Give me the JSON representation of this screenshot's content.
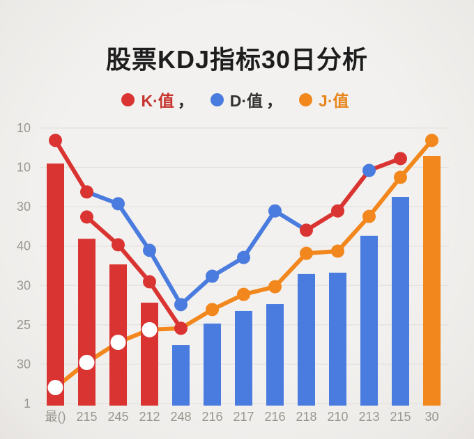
{
  "header": {
    "title": "股票KDJ指标30日分析"
  },
  "legend": [
    {
      "label": "K·值",
      "suffix": "，",
      "color": "#d93431",
      "text_color": "#c7332f"
    },
    {
      "label": "D·值",
      "suffix": "，",
      "color": "#4a7bde",
      "text_color": "#333333"
    },
    {
      "label": "J·值",
      "suffix": "",
      "color": "#f2871d",
      "text_color": "#e8861c"
    }
  ],
  "chart_data": {
    "type": "bar+line",
    "title": "股票KDJ指标30日分析",
    "legend_entries": [
      "K·值",
      "D·值",
      "J·值"
    ],
    "legend_position": "top",
    "grid": true,
    "categories": [
      "最()",
      "215",
      "245",
      "212",
      "248",
      "216",
      "217",
      "216",
      "218",
      "210",
      "213",
      "215",
      "30"
    ],
    "y_tick_labels": [
      "10",
      "10",
      "30",
      "40",
      "30",
      "25",
      "30",
      "1"
    ],
    "value_scale_note": "values are percent of plot height above the baseline (0=baseline, 100=top gridline), estimated from pixels; the printed y-axis labels are non-monotonic as shown",
    "colors": {
      "red": "#d93431",
      "blue": "#4a7bde",
      "orange": "#f2871d",
      "white": "#ffffff"
    },
    "axis_text_color": "#98978f",
    "gridline_color": "#e3e1dd",
    "bars": {
      "values": [
        87.1,
        59.8,
        50.5,
        36.6,
        21.2,
        29.0,
        33.6,
        36.1,
        47.0,
        47.5,
        60.9,
        75.0,
        89.9
      ],
      "colors": [
        "red",
        "red",
        "red",
        "red",
        "blue",
        "blue",
        "blue",
        "blue",
        "blue",
        "blue",
        "blue",
        "blue",
        "orange"
      ]
    },
    "lines": [
      {
        "name": "J值",
        "color": "orange",
        "points": [
          {
            "c": 0,
            "v": 5.8,
            "dot": "white"
          },
          {
            "c": 1,
            "v": 14.9,
            "dot": "white"
          },
          {
            "c": 2,
            "v": 22.2,
            "dot": "white"
          },
          {
            "c": 3,
            "v": 26.8,
            "dot": "white"
          },
          {
            "c": 4,
            "v": 27.3,
            "dot": "none"
          },
          {
            "c": 5,
            "v": 34.1,
            "dot": "orange"
          },
          {
            "c": 6,
            "v": 39.6,
            "dot": "orange"
          },
          {
            "c": 7,
            "v": 42.4,
            "dot": "orange"
          },
          {
            "c": 8,
            "v": 54.5,
            "dot": "orange"
          },
          {
            "c": 9,
            "v": 55.3,
            "dot": "orange"
          },
          {
            "c": 10,
            "v": 67.9,
            "dot": "orange"
          },
          {
            "c": 11,
            "v": 82.1,
            "dot": "orange"
          },
          {
            "c": 12,
            "v": 95.5,
            "dot": "orange"
          }
        ]
      },
      {
        "name": "D值",
        "color": "blue",
        "points": [
          {
            "c": 1,
            "v": 76.8,
            "dot": "none"
          },
          {
            "c": 2,
            "v": 72.5,
            "dot": "blue"
          },
          {
            "c": 3,
            "v": 55.6,
            "dot": "blue"
          },
          {
            "c": 4,
            "v": 35.9,
            "dot": "blue"
          },
          {
            "c": 5,
            "v": 46.2,
            "dot": "blue"
          },
          {
            "c": 6,
            "v": 53.0,
            "dot": "blue"
          },
          {
            "c": 7,
            "v": 69.9,
            "dot": "blue"
          },
          {
            "c": 8,
            "v": 62.9,
            "dot": "none"
          }
        ]
      },
      {
        "name": "K值-seg1",
        "color": "red",
        "points": [
          {
            "c": 0,
            "v": 95.5,
            "dot": "red"
          },
          {
            "c": 1,
            "v": 76.8,
            "dot": "red"
          }
        ]
      },
      {
        "name": "K值-seg2",
        "color": "red",
        "points": [
          {
            "c": 1,
            "v": 67.7,
            "dot": "red"
          },
          {
            "c": 2,
            "v": 57.6,
            "dot": "red"
          },
          {
            "c": 3,
            "v": 44.2,
            "dot": "red"
          },
          {
            "c": 4,
            "v": 27.3,
            "dot": "red"
          }
        ]
      },
      {
        "name": "K值-seg3",
        "color": "red",
        "points": [
          {
            "c": 8,
            "v": 62.9,
            "dot": "red"
          },
          {
            "c": 9,
            "v": 69.9,
            "dot": "red"
          },
          {
            "c": 10,
            "v": 84.6,
            "dot": "blue"
          },
          {
            "c": 11,
            "v": 88.9,
            "dot": "red"
          }
        ]
      }
    ]
  }
}
